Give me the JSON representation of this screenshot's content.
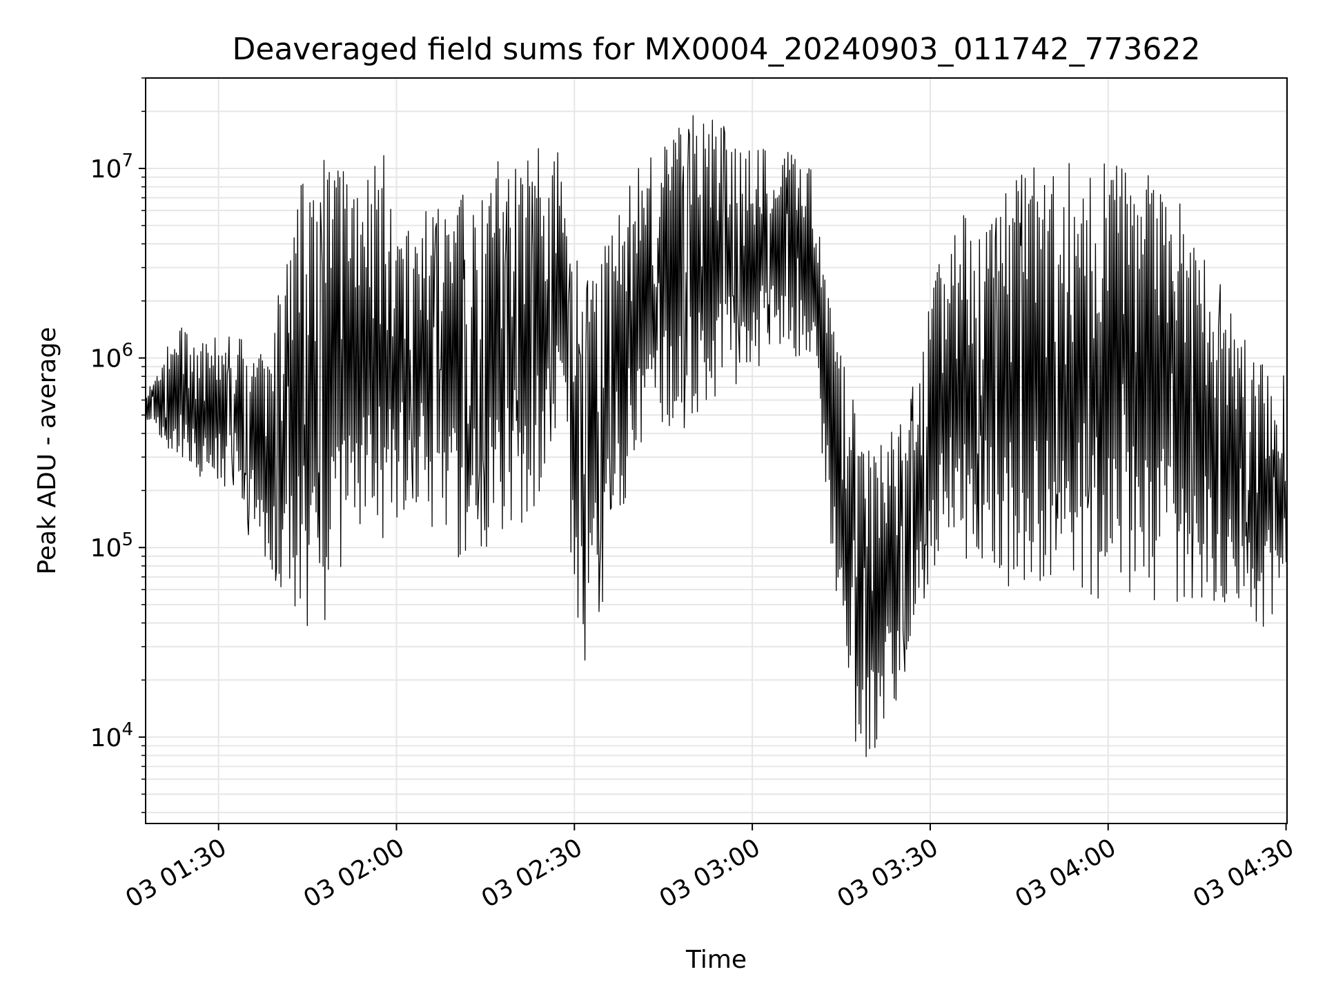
{
  "chart_data": {
    "type": "line",
    "title": "Deaveraged field sums for MX0004_20240903_011742_773622",
    "xlabel": "Time",
    "ylabel": "Peak ADU - average",
    "yscale": "log",
    "ylim": [
      3500,
      30000000
    ],
    "xlim": [
      "2024-09-03 01:17:42",
      "2024-09-03 04:30:10"
    ],
    "x_ticks": [
      {
        "label": "03 01:30",
        "x": "2024-09-03 01:30"
      },
      {
        "label": "03 02:00",
        "x": "2024-09-03 02:00"
      },
      {
        "label": "03 02:30",
        "x": "2024-09-03 02:30"
      },
      {
        "label": "03 03:00",
        "x": "2024-09-03 03:00"
      },
      {
        "label": "03 03:30",
        "x": "2024-09-03 03:30"
      },
      {
        "label": "03 04:00",
        "x": "2024-09-03 04:00"
      },
      {
        "label": "03 04:30",
        "x": "2024-09-03 04:30"
      }
    ],
    "y_ticks": [
      {
        "base": "10",
        "exp": "4",
        "value": 10000
      },
      {
        "base": "10",
        "exp": "5",
        "value": 100000
      },
      {
        "base": "10",
        "exp": "6",
        "value": 1000000
      },
      {
        "base": "10",
        "exp": "7",
        "value": 10000000
      }
    ],
    "grid": true,
    "line_color": "#000000",
    "grid_color": "#e6e6e6",
    "series": [
      {
        "x": [
          "2024-09-03 01:18",
          "2024-09-03 01:23",
          "2024-09-03 01:28",
          "2024-09-03 01:33",
          "2024-09-03 01:38",
          "2024-09-03 01:43",
          "2024-09-03 01:48",
          "2024-09-03 01:53",
          "2024-09-03 01:58",
          "2024-09-03 02:03",
          "2024-09-03 02:08",
          "2024-09-03 02:13",
          "2024-09-03 02:18",
          "2024-09-03 02:23",
          "2024-09-03 02:28",
          "2024-09-03 02:31",
          "2024-09-03 02:35",
          "2024-09-03 02:40",
          "2024-09-03 02:45",
          "2024-09-03 02:50",
          "2024-09-03 02:55",
          "2024-09-03 03:00",
          "2024-09-03 03:05",
          "2024-09-03 03:10",
          "2024-09-03 03:13",
          "2024-09-03 03:16",
          "2024-09-03 03:20",
          "2024-09-03 03:25",
          "2024-09-03 03:29",
          "2024-09-03 03:32",
          "2024-09-03 03:36",
          "2024-09-03 03:40",
          "2024-09-03 03:45",
          "2024-09-03 03:50",
          "2024-09-03 03:55",
          "2024-09-03 04:00",
          "2024-09-03 04:05",
          "2024-09-03 04:10",
          "2024-09-03 04:15",
          "2024-09-03 04:20",
          "2024-09-03 04:25",
          "2024-09-03 04:30"
        ],
        "low": [
          400000,
          250000,
          200000,
          180000,
          60000,
          30000,
          30000,
          100000,
          80000,
          150000,
          80000,
          60000,
          100000,
          120000,
          300000,
          15000,
          40000,
          200000,
          300000,
          400000,
          500000,
          700000,
          1000000,
          800000,
          100000,
          8000,
          6000,
          15000,
          30000,
          100000,
          60000,
          60000,
          40000,
          40000,
          40000,
          40000,
          40000,
          40000,
          40000,
          40000,
          30000,
          50000
        ],
        "high": [
          700000,
          1500000,
          1200000,
          1500000,
          1000000,
          8000000,
          13000000,
          11000000,
          12000000,
          5000000,
          8000000,
          9000000,
          12000000,
          13000000,
          15000000,
          2500000,
          4000000,
          10000000,
          15000000,
          19000000,
          18000000,
          15000000,
          13000000,
          10000000,
          2000000,
          800000,
          300000,
          500000,
          1500000,
          4000000,
          6000000,
          8000000,
          10000000,
          11000000,
          11000000,
          12000000,
          10000000,
          8000000,
          5000000,
          2000000,
          1000000,
          800000
        ]
      }
    ]
  }
}
